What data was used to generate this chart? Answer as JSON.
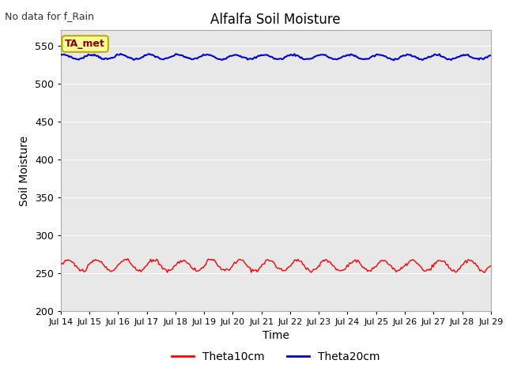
{
  "title": "Alfalfa Soil Moisture",
  "no_data_text": "No data for f_Rain",
  "xlabel": "Time",
  "ylabel": "Soil Moisture",
  "ylim": [
    200,
    570
  ],
  "yticks": [
    200,
    250,
    300,
    350,
    400,
    450,
    500,
    550
  ],
  "xtick_labels": [
    "Jul 14",
    "Jul 15",
    "Jul 16",
    "Jul 17",
    "Jul 18",
    "Jul 19",
    "Jul 20",
    "Jul 21",
    "Jul 22",
    "Jul 23",
    "Jul 24",
    "Jul 25",
    "Jul 26",
    "Jul 27",
    "Jul 28",
    "Jul 29"
  ],
  "legend_labels": [
    "Theta10cm",
    "Theta20cm"
  ],
  "legend_colors": [
    "#ff0000",
    "#0000bb"
  ],
  "ta_met_label": "TA_met",
  "ta_met_bg": "#ffff99",
  "ta_met_border": "#bbaa00",
  "figure_bg_color": "#ffffff",
  "plot_bg_color": "#e8e8e8",
  "grid_color": "#ffffff",
  "theta10_color": "#ff0000",
  "theta20_color": "#0000cc",
  "theta10_base": 260,
  "theta10_amplitude": 7,
  "theta10_trend": -0.028,
  "theta20_base": 535,
  "theta20_amplitude": 3,
  "theta20_trend": -0.012,
  "n_days": 15,
  "points_per_day": 24
}
